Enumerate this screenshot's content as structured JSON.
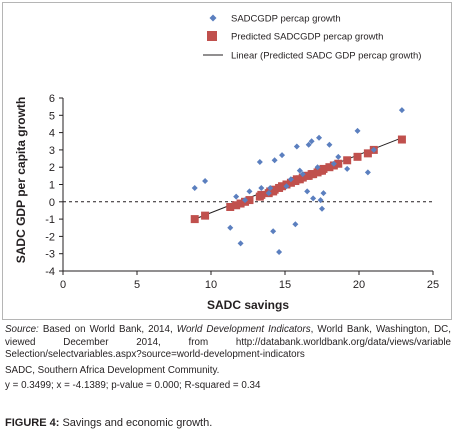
{
  "chart_data": {
    "type": "scatter",
    "xlabel": "SADC savings",
    "ylabel": "SADC GDP per capita growth",
    "xlim": [
      0,
      25
    ],
    "ylim": [
      -4,
      6
    ],
    "x_ticks": [
      "0",
      "5",
      "10",
      "15",
      "20",
      "25"
    ],
    "y_ticks": [
      "-4",
      "-3",
      "-2",
      "-1",
      "0",
      "1",
      "2",
      "3",
      "4",
      "5",
      "6"
    ],
    "grid": false,
    "zero_line": "dashed",
    "legend_position": "top-right",
    "series": [
      {
        "name": "SADCGDP percap growth",
        "marker": "diamond",
        "color": "#5b7fbf",
        "points": [
          [
            8.9,
            0.8
          ],
          [
            9.6,
            1.2
          ],
          [
            11.3,
            -1.5
          ],
          [
            11.7,
            0.3
          ],
          [
            12.0,
            -2.4
          ],
          [
            12.3,
            0.1
          ],
          [
            12.6,
            0.6
          ],
          [
            13.3,
            2.3
          ],
          [
            13.4,
            0.8
          ],
          [
            13.9,
            0.5
          ],
          [
            14.0,
            0.8
          ],
          [
            14.2,
            -1.7
          ],
          [
            14.3,
            2.4
          ],
          [
            14.6,
            -2.9
          ],
          [
            14.8,
            2.7
          ],
          [
            15.1,
            0.9
          ],
          [
            15.4,
            1.3
          ],
          [
            15.7,
            -1.3
          ],
          [
            15.8,
            3.2
          ],
          [
            16.0,
            1.8
          ],
          [
            16.2,
            1.6
          ],
          [
            16.5,
            0.6
          ],
          [
            16.6,
            3.3
          ],
          [
            16.8,
            3.5
          ],
          [
            16.9,
            0.2
          ],
          [
            17.2,
            2.0
          ],
          [
            17.3,
            3.7
          ],
          [
            17.4,
            0.1
          ],
          [
            17.5,
            -0.4
          ],
          [
            17.6,
            0.5
          ],
          [
            18.0,
            3.3
          ],
          [
            18.3,
            2.2
          ],
          [
            18.6,
            2.6
          ],
          [
            19.2,
            1.9
          ],
          [
            19.9,
            4.1
          ],
          [
            20.6,
            1.7
          ],
          [
            21.0,
            3.0
          ],
          [
            22.9,
            5.3
          ]
        ]
      },
      {
        "name": "Predicted SADCGDP percap growth",
        "marker": "square",
        "color": "#c0504d",
        "points": [
          [
            8.9,
            -1.0
          ],
          [
            9.6,
            -0.8
          ],
          [
            11.3,
            -0.3
          ],
          [
            11.7,
            -0.2
          ],
          [
            12.0,
            -0.1
          ],
          [
            12.3,
            0.0
          ],
          [
            12.6,
            0.1
          ],
          [
            13.3,
            0.3
          ],
          [
            13.4,
            0.4
          ],
          [
            13.9,
            0.5
          ],
          [
            14.0,
            0.6
          ],
          [
            14.2,
            0.6
          ],
          [
            14.3,
            0.7
          ],
          [
            14.6,
            0.8
          ],
          [
            14.8,
            0.9
          ],
          [
            15.1,
            1.0
          ],
          [
            15.4,
            1.1
          ],
          [
            15.7,
            1.2
          ],
          [
            15.8,
            1.3
          ],
          [
            16.0,
            1.3
          ],
          [
            16.2,
            1.4
          ],
          [
            16.5,
            1.5
          ],
          [
            16.6,
            1.5
          ],
          [
            16.8,
            1.6
          ],
          [
            16.9,
            1.6
          ],
          [
            17.2,
            1.7
          ],
          [
            17.3,
            1.8
          ],
          [
            17.4,
            1.8
          ],
          [
            17.5,
            1.8
          ],
          [
            17.6,
            1.9
          ],
          [
            18.0,
            2.0
          ],
          [
            18.3,
            2.1
          ],
          [
            18.6,
            2.2
          ],
          [
            19.2,
            2.4
          ],
          [
            19.9,
            2.6
          ],
          [
            20.6,
            2.8
          ],
          [
            21.0,
            3.0
          ],
          [
            22.9,
            3.6
          ]
        ]
      },
      {
        "name": "Linear (Predicted SADC GDP percap growth)",
        "type": "line",
        "color": "#231f20",
        "points": [
          [
            8.9,
            -1.0
          ],
          [
            22.9,
            3.7
          ]
        ]
      }
    ]
  },
  "notes": {
    "source_label": "Source:",
    "source_text_1": " Based on World Bank, 2014, ",
    "source_title": "World Development Indicators",
    "source_text_2": ", World Bank, Washington, DC, viewed December 2014, from http://databank.worldbank.org/data/views/variable Selection/selectvariables.aspx?source=world-development-indicators",
    "abbreviation": "SADC, Southern Africa Development Community.",
    "stats": "y = 0.3499; x = -4.1389; p-value = 0.000; R-squared = 0.34"
  },
  "caption": {
    "label": "FIGURE 4:",
    "text": " Savings and economic growth."
  }
}
